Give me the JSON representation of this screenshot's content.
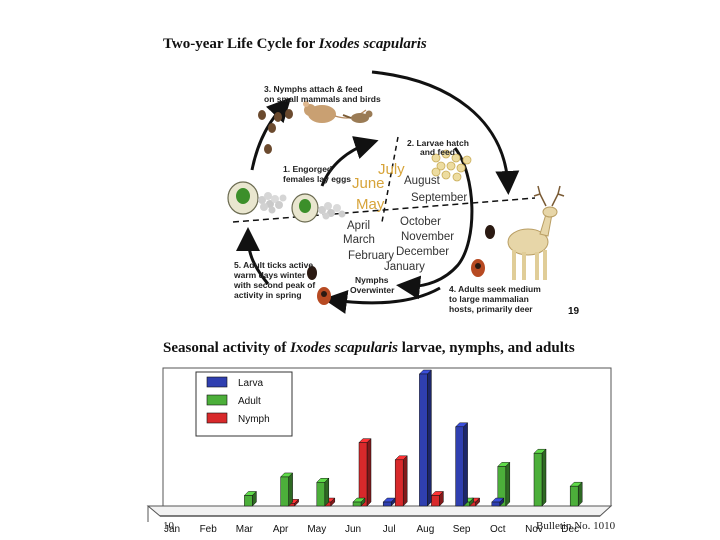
{
  "lifecycle": {
    "title_prefix": "Two-year Life Cycle for ",
    "title_species": "Ixodes scapularis",
    "steps": {
      "s1_line1": "1. Engorged",
      "s1_line2": "females lay eggs",
      "s2_line1": "2. Larvae hatch",
      "s2_line2": "and feed",
      "s3_line1": "3. Nymphs attach & feed",
      "s3_line2": "on small mammals and birds",
      "s4_line1": "4. Adults seek medium",
      "s4_line2": "to large mammalian",
      "s4_line3": "hosts, primarily deer",
      "s5_line1": "5. Adult ticks active",
      "s5_line2": "warm days winter",
      "s5_line3": "with second peak of",
      "s5_line4": "activity in spring",
      "nymphs_line1": "Nymphs",
      "nymphs_line2": "Overwinter"
    },
    "months": {
      "july": "July",
      "june": "June",
      "may": "May",
      "august": "August",
      "september": "September",
      "october": "October",
      "november": "November",
      "december": "December",
      "january": "January",
      "february": "February",
      "march": "March",
      "april": "April"
    },
    "page_number": "19",
    "colors": {
      "summer_month": "#d7a43a",
      "text": "#222222"
    }
  },
  "seasonal": {
    "title_prefix": "Seasonal activity of ",
    "title_species": "Ixodes scapularis",
    "title_suffix": " larvae, nymphs, and adults",
    "footer_page": "10",
    "footer_bulletin": "Bulletin No. 1010"
  },
  "chart_data": {
    "type": "bar",
    "categories": [
      "Jan",
      "Feb",
      "Mar",
      "Apr",
      "May",
      "Jun",
      "Jul",
      "Aug",
      "Sep",
      "Oct",
      "Nov",
      "Dec"
    ],
    "series": [
      {
        "name": "Larva",
        "color": "#2f3fb0",
        "values": [
          0,
          0,
          0,
          0,
          0,
          0,
          3,
          100,
          60,
          3,
          0,
          0
        ]
      },
      {
        "name": "Adult",
        "color": "#4caf3a",
        "values": [
          0,
          0,
          8,
          22,
          18,
          3,
          0,
          0,
          3,
          30,
          40,
          15
        ]
      },
      {
        "name": "Nymph",
        "color": "#d8292b",
        "values": [
          0,
          0,
          0,
          2,
          3,
          48,
          35,
          8,
          3,
          0,
          0,
          0
        ]
      }
    ],
    "legend": "top-left",
    "grid": false
  }
}
